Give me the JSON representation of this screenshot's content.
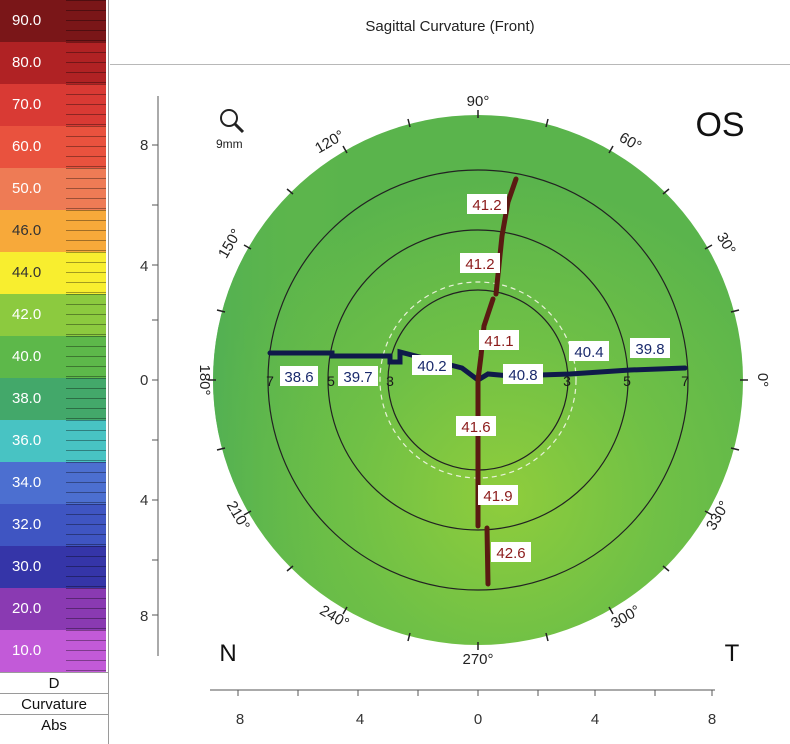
{
  "title": "Sagittal Curvature (Front)",
  "eye": "OS",
  "nasal_label": "N",
  "temporal_label": "T",
  "zoom_label": "9mm",
  "scale": {
    "items": [
      {
        "label": "90.0",
        "color": "#7a1618"
      },
      {
        "label": "80.0",
        "color": "#b02224"
      },
      {
        "label": "70.0",
        "color": "#d93a34"
      },
      {
        "label": "60.0",
        "color": "#e9523e"
      },
      {
        "label": "50.0",
        "color": "#ee7b55"
      },
      {
        "label": "46.0",
        "color": "#f7a93a"
      },
      {
        "label": "44.0",
        "color": "#f8ee2f"
      },
      {
        "label": "42.0",
        "color": "#8cca3f"
      },
      {
        "label": "40.0",
        "color": "#5db84a"
      },
      {
        "label": "38.0",
        "color": "#43a86a"
      },
      {
        "label": "36.0",
        "color": "#48c3c3"
      },
      {
        "label": "34.0",
        "color": "#4c6fd0"
      },
      {
        "label": "32.0",
        "color": "#3f55c2"
      },
      {
        "label": "30.0",
        "color": "#3535a8"
      },
      {
        "label": "20.0",
        "color": "#8a3ab2"
      },
      {
        "label": "10.0",
        "color": "#c25ad8"
      }
    ],
    "unit": "D",
    "type": "Curvature",
    "mode": "Abs"
  },
  "axes": {
    "y_ticks": [
      "8",
      "4",
      "0",
      "4",
      "8"
    ],
    "x_ticks": [
      "8",
      "4",
      "0",
      "4",
      "8"
    ]
  },
  "angles": {
    "a90": "90°",
    "a60": "60°",
    "a30": "30°",
    "a0": "0°",
    "a330": "330°",
    "a300": "300°",
    "a270": "270°",
    "a240": "240°",
    "a210": "210°",
    "a180": "180°",
    "a150": "150°",
    "a120": "120°"
  },
  "ring_labels": {
    "nasal": [
      "7",
      "5",
      "3"
    ],
    "temporal": [
      "3",
      "5",
      "7"
    ]
  },
  "values": {
    "nasal": [
      "38.6",
      "39.7",
      "40.2"
    ],
    "temporal": [
      "40.8",
      "40.4",
      "39.8"
    ],
    "superior": [
      "41.1",
      "41.2",
      "41.2"
    ],
    "inferior": [
      "41.6",
      "41.9",
      "42.6"
    ]
  },
  "colors": {
    "map_green": "#6bbf45",
    "steep_meridian": "#5a1a12",
    "flat_meridian": "#0f1a4a",
    "label_red": "#8b1a1a",
    "label_blue": "#1a2a6c"
  }
}
